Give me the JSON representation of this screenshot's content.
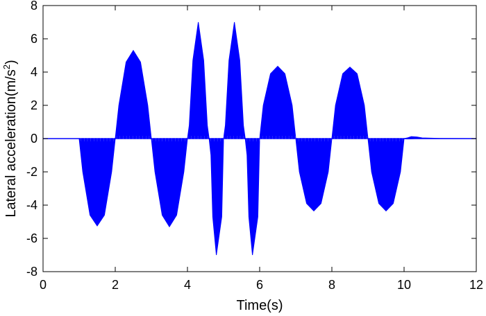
{
  "chart_data": {
    "type": "line",
    "title": "",
    "xlabel": "Time(s)",
    "ylabel": "Lateral acceleration(m/s",
    "ylabel_sup": "2",
    "ylabel_close": ")",
    "xlim": [
      0,
      12
    ],
    "ylim": [
      -8,
      8
    ],
    "xticks": [
      0,
      2,
      4,
      6,
      8,
      10,
      12
    ],
    "yticks": [
      -8,
      -6,
      -4,
      -2,
      0,
      2,
      4,
      6,
      8
    ],
    "grid": false,
    "legend": "none",
    "series": [
      {
        "color": "#0000ff",
        "style": "dense oscillating fill (envelope shown)",
        "upper_envelope": [
          [
            0,
            0
          ],
          [
            1.0,
            0
          ],
          [
            1.1,
            0
          ],
          [
            1.5,
            0
          ],
          [
            2.0,
            0
          ],
          [
            2.1,
            2.0
          ],
          [
            2.3,
            4.6
          ],
          [
            2.5,
            5.3
          ],
          [
            2.7,
            4.6
          ],
          [
            2.9,
            2.0
          ],
          [
            3.0,
            0
          ],
          [
            3.5,
            0
          ],
          [
            4.0,
            0
          ],
          [
            4.05,
            0.8
          ],
          [
            4.15,
            4.7
          ],
          [
            4.3,
            7.0
          ],
          [
            4.45,
            4.7
          ],
          [
            4.55,
            0.8
          ],
          [
            4.6,
            0
          ],
          [
            5.0,
            0
          ],
          [
            5.05,
            0.8
          ],
          [
            5.15,
            4.7
          ],
          [
            5.3,
            7.0
          ],
          [
            5.45,
            4.7
          ],
          [
            5.55,
            0.8
          ],
          [
            5.6,
            0
          ],
          [
            6.0,
            0
          ],
          [
            6.1,
            2.0
          ],
          [
            6.3,
            3.9
          ],
          [
            6.5,
            4.35
          ],
          [
            6.7,
            3.9
          ],
          [
            6.9,
            2.0
          ],
          [
            7.0,
            0
          ],
          [
            8.0,
            0
          ],
          [
            8.1,
            2.0
          ],
          [
            8.3,
            3.9
          ],
          [
            8.5,
            4.3
          ],
          [
            8.7,
            3.9
          ],
          [
            8.9,
            2.0
          ],
          [
            9.0,
            0
          ],
          [
            10.0,
            0
          ],
          [
            10.1,
            0.05
          ],
          [
            10.2,
            0.12
          ],
          [
            10.35,
            0.1
          ],
          [
            10.5,
            0.04
          ],
          [
            11.0,
            0.01
          ],
          [
            12.0,
            0
          ]
        ],
        "lower_envelope": [
          [
            0,
            0
          ],
          [
            1.0,
            0
          ],
          [
            1.1,
            -2.0
          ],
          [
            1.3,
            -4.6
          ],
          [
            1.5,
            -5.25
          ],
          [
            1.7,
            -4.6
          ],
          [
            1.9,
            -2.0
          ],
          [
            2.0,
            0
          ],
          [
            3.0,
            0
          ],
          [
            3.1,
            -2.0
          ],
          [
            3.3,
            -4.6
          ],
          [
            3.5,
            -5.3
          ],
          [
            3.7,
            -4.6
          ],
          [
            3.9,
            -2.0
          ],
          [
            4.0,
            0
          ],
          [
            4.6,
            0
          ],
          [
            4.65,
            -1.0
          ],
          [
            4.7,
            -4.7
          ],
          [
            4.8,
            -7.0
          ],
          [
            4.95,
            -4.7
          ],
          [
            5.0,
            0
          ],
          [
            5.6,
            0
          ],
          [
            5.65,
            -1.0
          ],
          [
            5.7,
            -4.7
          ],
          [
            5.8,
            -7.0
          ],
          [
            5.95,
            -4.7
          ],
          [
            6.0,
            0
          ],
          [
            7.0,
            0
          ],
          [
            7.1,
            -2.0
          ],
          [
            7.3,
            -3.9
          ],
          [
            7.5,
            -4.35
          ],
          [
            7.7,
            -3.9
          ],
          [
            7.9,
            -2.0
          ],
          [
            8.0,
            0
          ],
          [
            9.0,
            0
          ],
          [
            9.1,
            -2.0
          ],
          [
            9.3,
            -3.9
          ],
          [
            9.5,
            -4.35
          ],
          [
            9.7,
            -3.9
          ],
          [
            9.9,
            -2.0
          ],
          [
            10.0,
            0
          ],
          [
            10.1,
            -0.02
          ],
          [
            10.3,
            0
          ],
          [
            12.0,
            0
          ]
        ]
      }
    ]
  }
}
